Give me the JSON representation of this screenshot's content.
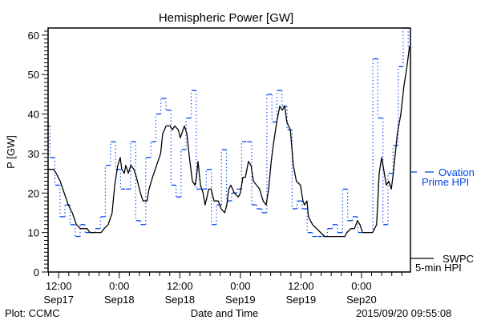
{
  "chart_data": {
    "type": "line",
    "title": "Hemispheric Power [GW]",
    "xlabel": "Date and Time",
    "ylabel": "P [GW]",
    "x_units": "hours since 2015-09-17 00:00",
    "xlim": [
      9.9,
      81.7
    ],
    "ylim": [
      0,
      61.8
    ],
    "y_ticks": [
      0,
      10,
      20,
      30,
      40,
      50,
      60
    ],
    "x_ticks": [
      {
        "x": 12,
        "time": "12:00",
        "date": "Sep17"
      },
      {
        "x": 24,
        "time": "0:00",
        "date": "Sep18"
      },
      {
        "x": 36,
        "time": "12:00",
        "date": "Sep18"
      },
      {
        "x": 48,
        "time": "0:00",
        "date": "Sep19"
      },
      {
        "x": 60,
        "time": "12:00",
        "date": "Sep19"
      },
      {
        "x": 72,
        "time": "0:00",
        "date": "Sep20"
      }
    ],
    "x_minor_step_hours": 2,
    "grid": false,
    "legend_placement": "right-outside",
    "series": [
      {
        "name": "Ovation Prime HPI",
        "legend_lines": [
          "Ovation",
          "Prime HPI"
        ],
        "color": "#0044ee",
        "style": "step-dashed",
        "step_start": 9.25,
        "step_hours": 1,
        "values": [
          37,
          29,
          22,
          14,
          17,
          12,
          9,
          12,
          10,
          10,
          11,
          14,
          27,
          33,
          26,
          21,
          21,
          33,
          13,
          12,
          29,
          33,
          40,
          44,
          41,
          22,
          19,
          31,
          39,
          46,
          21,
          21,
          26,
          12,
          17,
          31,
          18,
          20,
          21,
          33,
          33,
          17,
          16,
          15,
          45,
          38,
          46,
          42,
          36,
          16,
          18,
          16,
          10,
          9,
          9,
          9,
          11,
          12,
          10,
          21,
          13,
          14,
          10,
          10,
          10,
          54,
          39,
          12,
          25,
          32,
          52,
          62,
          57
        ]
      },
      {
        "name": "SWPC 5-min HPI",
        "legend_lines": [
          "SWPC",
          "5-min HPI"
        ],
        "color": "#000000",
        "style": "solid",
        "x": [
          9.9,
          11.0,
          11.5,
          12.3,
          13.1,
          13.9,
          14.7,
          15.5,
          16.3,
          17.6,
          18.2,
          19.5,
          20.4,
          21.0,
          21.8,
          22.6,
          23.1,
          23.7,
          24.2,
          24.5,
          25.0,
          25.3,
          25.8,
          26.3,
          26.9,
          27.4,
          28.2,
          28.7,
          29.5,
          29.9,
          30.6,
          31.4,
          32.2,
          32.6,
          33.3,
          34.1,
          34.5,
          35.0,
          35.7,
          36.1,
          36.9,
          37.4,
          37.9,
          38.5,
          39.0,
          39.3,
          39.6,
          40.1,
          40.6,
          41.0,
          41.4,
          41.7,
          42.2,
          42.8,
          43.6,
          44.2,
          44.9,
          45.3,
          45.7,
          46.1,
          46.8,
          47.6,
          48.0,
          48.5,
          49.0,
          49.6,
          50.1,
          50.6,
          51.2,
          51.8,
          52.5,
          53.1,
          53.6,
          54.1,
          54.5,
          55.2,
          55.8,
          56.3,
          56.8,
          57.2,
          57.9,
          58.5,
          59.1,
          59.9,
          60.4,
          60.7,
          61.2,
          61.5,
          62.3,
          63.1,
          63.9,
          64.7,
          68.7,
          69.1,
          69.9,
          70.6,
          71.2,
          71.7,
          72.2,
          73.1,
          74.2,
          75.0,
          75.5,
          76.0,
          76.4,
          76.9,
          77.4,
          77.9,
          78.2,
          78.7,
          79.1,
          79.8,
          80.4,
          81.0,
          81.5
        ],
        "y": [
          26,
          26,
          25,
          23,
          20,
          17,
          15,
          12,
          11,
          11,
          10,
          10,
          10,
          11,
          12,
          15,
          22,
          27,
          29,
          26,
          25,
          27,
          25,
          27,
          26,
          24,
          20,
          18,
          18,
          21,
          24,
          27,
          30,
          35,
          37,
          37,
          36,
          37,
          36,
          34,
          37,
          35,
          29,
          23,
          22,
          24,
          28,
          22,
          20,
          17,
          19,
          21,
          21,
          18,
          18,
          16,
          15,
          17,
          21,
          22,
          20,
          19,
          20,
          24,
          24,
          28,
          27,
          23,
          22,
          21,
          18,
          17,
          21,
          28,
          32,
          38,
          42,
          41,
          42,
          38,
          36,
          27,
          23,
          22,
          18,
          17,
          18,
          14,
          12,
          11,
          10,
          9,
          9,
          10,
          11,
          11,
          13,
          12,
          10,
          10,
          10,
          12,
          25,
          29,
          26,
          22,
          23,
          21,
          24,
          30,
          35,
          40,
          47,
          52,
          57
        ]
      }
    ]
  },
  "footer": {
    "plot_credit": "Plot: CCMC",
    "timestamp": "2015/09/20 09:55:08"
  }
}
